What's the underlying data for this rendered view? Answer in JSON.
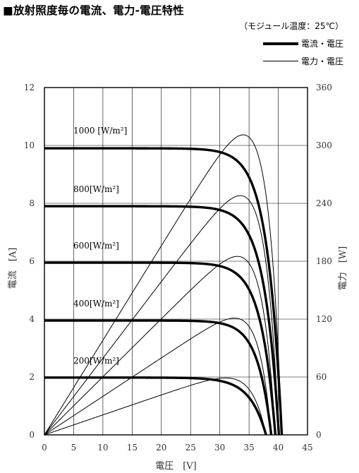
{
  "header": {
    "title": "■放射照度毎の電流、電力-電圧特性",
    "condition": "（モジュール温度：25℃）"
  },
  "legend": {
    "current_label": "電流・電圧",
    "power_label": "電力・電圧"
  },
  "chart_data": {
    "type": "line",
    "title": "■放射照度毎の電流、電力-電圧特性",
    "subtitle": "（モジュール温度：25℃）",
    "xlabel": "電圧　[V]",
    "ylabel": "電流　[A]",
    "y2label": "電力　[W]",
    "xlim": [
      0,
      45
    ],
    "ylim": [
      0,
      12
    ],
    "y2lim": [
      0,
      360
    ],
    "xticks": [
      "0",
      "5",
      "10",
      "15",
      "20",
      "25",
      "30",
      "35",
      "40",
      "45"
    ],
    "yticks": [
      "0",
      "2",
      "4",
      "6",
      "8",
      "10",
      "12"
    ],
    "y2ticks": [
      "0",
      "60",
      "120",
      "180",
      "240",
      "300",
      "360"
    ],
    "grid": true,
    "legend_position": "top-right",
    "series": [
      {
        "irradiance": "1000 [W/m²]",
        "isc": 9.9,
        "voc": 40.6,
        "vmp": 34.0,
        "pmax": 311
      },
      {
        "irradiance": "800[W/m²]",
        "isc": 7.9,
        "voc": 40.1,
        "vmp": 33.5,
        "pmax": 248
      },
      {
        "irradiance": "600[W/m²]",
        "isc": 5.95,
        "voc": 39.5,
        "vmp": 33.0,
        "pmax": 185
      },
      {
        "irradiance": "400[W/m²]",
        "isc": 3.95,
        "voc": 38.8,
        "vmp": 32.5,
        "pmax": 121
      },
      {
        "irradiance": "200[W/m²]",
        "isc": 1.98,
        "voc": 37.9,
        "vmp": 31.0,
        "pmax": 59
      }
    ]
  }
}
